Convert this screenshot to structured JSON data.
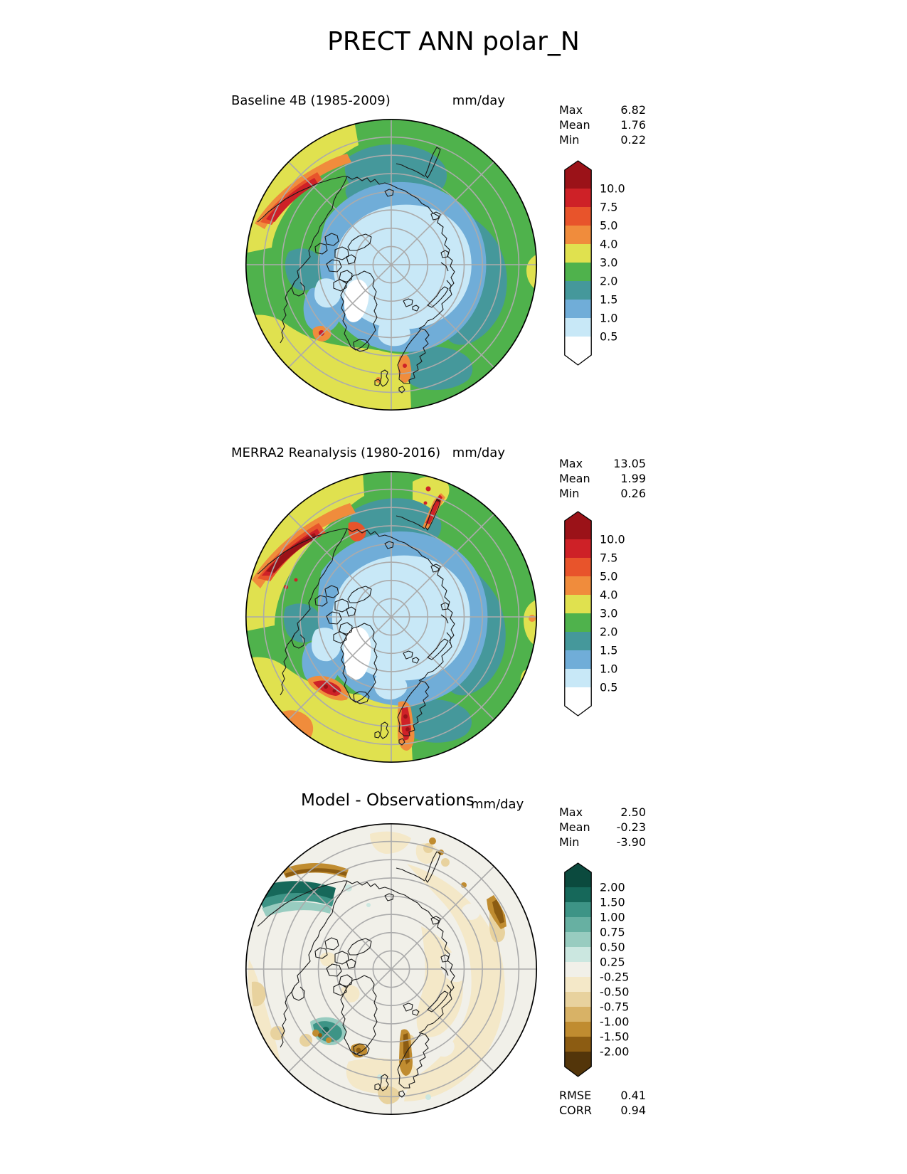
{
  "chart_data": {
    "type": "heatmap",
    "title": "PRECT ANN polar_N",
    "variable": "PRECT",
    "season": "ANN",
    "region": "polar_N",
    "projection": "north polar (90N center, graticule circles every 5 deg, spokes every 45 deg)",
    "graticule_color": "#ABABAB",
    "coast_color": "#1A1A1A",
    "map_colors": {
      "white": "#FFFFFF",
      "lightblue": "#C8E8F7",
      "blue": "#70ADD8",
      "teal": "#45989B",
      "green": "#4FB24C",
      "yellow": "#E0E14F",
      "orange": "#F08C3C",
      "orangered": "#E8542B",
      "red": "#CE2127",
      "darkred": "#9B1218",
      "neutral": "#F1F0E9",
      "tan1": "#F4E8C8",
      "tan2": "#E8D29E",
      "tan3": "#D8B266",
      "brown": "#C08C30",
      "darkbrown": "#8C5C12",
      "deepbrown": "#53350A",
      "dteal_light": "#CBE7E0",
      "dteal_midlight": "#98CCC0",
      "dteal_mid": "#3D9486",
      "dteal_dark": "#16685A",
      "dteal_darkest": "#0B4A3E"
    },
    "panels": [
      {
        "id": "model",
        "title": "Baseline 4B (1985-2009)",
        "units": "mm/day",
        "stats": {
          "rows": [
            {
              "label": "Max",
              "value": "6.82"
            },
            {
              "label": "Mean",
              "value": "1.76"
            },
            {
              "label": "Min",
              "value": "0.22"
            }
          ]
        },
        "colorbar": {
          "ticks": [
            "10.0",
            "7.5",
            "5.0",
            "4.0",
            "3.0",
            "2.0",
            "1.5",
            "1.0",
            "0.5"
          ],
          "colors": [
            "#9B1218",
            "#CE2127",
            "#E8542B",
            "#F08C3C",
            "#E0E14F",
            "#4FB24C",
            "#45989B",
            "#70ADD8",
            "#C8E8F7",
            "#FFFFFF"
          ]
        }
      },
      {
        "id": "obs",
        "title": "MERRA2 Reanalysis (1980-2016)",
        "units": "mm/day",
        "stats": {
          "rows": [
            {
              "label": "Max",
              "value": "13.05"
            },
            {
              "label": "Mean",
              "value": "1.99"
            },
            {
              "label": "Min",
              "value": "0.26"
            }
          ]
        },
        "colorbar": {
          "ticks": [
            "10.0",
            "7.5",
            "5.0",
            "4.0",
            "3.0",
            "2.0",
            "1.5",
            "1.0",
            "0.5"
          ],
          "colors": [
            "#9B1218",
            "#CE2127",
            "#E8542B",
            "#F08C3C",
            "#E0E14F",
            "#4FB24C",
            "#45989B",
            "#70ADD8",
            "#C8E8F7",
            "#FFFFFF"
          ]
        }
      },
      {
        "id": "diff",
        "title": "Model - Observations",
        "units": "mm/day",
        "stats": {
          "rows": [
            {
              "label": "Max",
              "value": "2.50"
            },
            {
              "label": "Mean",
              "value": "-0.23"
            },
            {
              "label": "Min",
              "value": "-3.90"
            }
          ]
        },
        "colorbar": {
          "ticks": [
            "2.00",
            "1.50",
            "1.00",
            "0.75",
            "0.50",
            "0.25",
            "-0.25",
            "-0.50",
            "-0.75",
            "-1.00",
            "-1.50",
            "-2.00"
          ],
          "colors": [
            "#0B4A3E",
            "#16685A",
            "#3D9486",
            "#67B0A2",
            "#98CCC0",
            "#CBE7E0",
            "#F1F0E9",
            "#F4E8C8",
            "#E8D29E",
            "#D8B266",
            "#C08C30",
            "#8C5C12",
            "#53350A"
          ]
        },
        "metrics": {
          "rows": [
            {
              "label": "RMSE",
              "value": "0.41"
            },
            {
              "label": "CORR",
              "value": "0.94"
            }
          ]
        }
      }
    ]
  }
}
